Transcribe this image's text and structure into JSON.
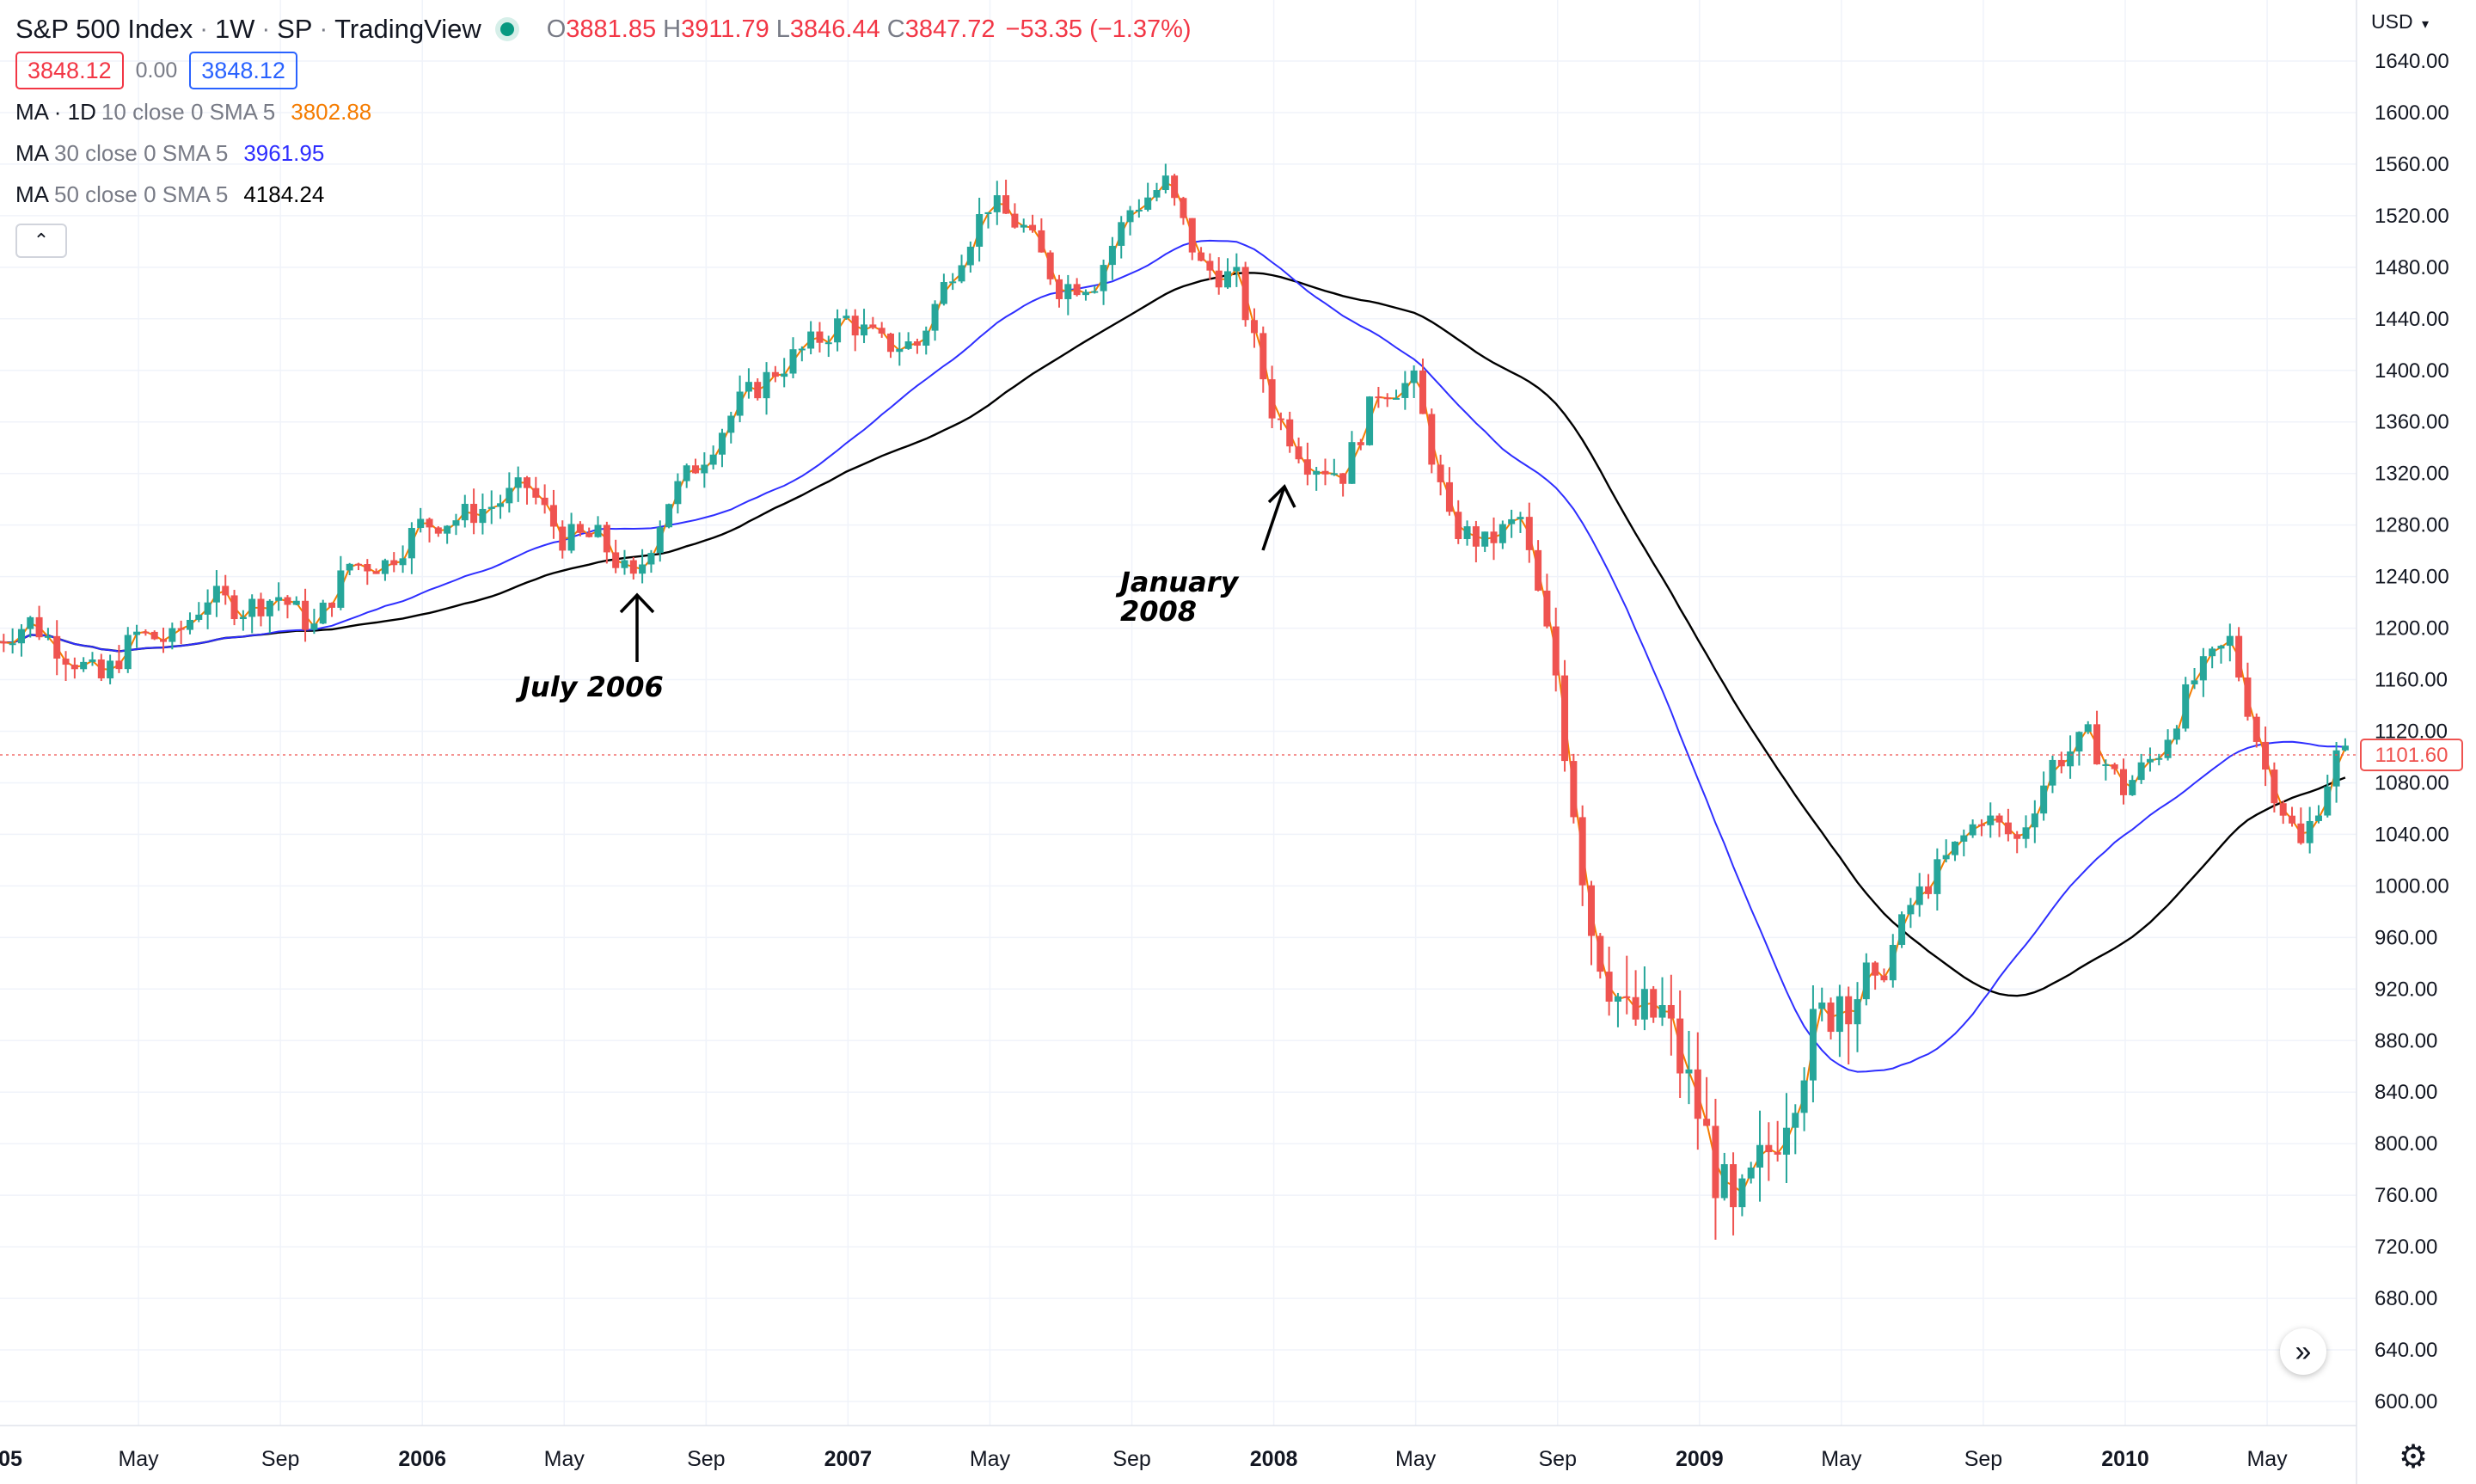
{
  "header": {
    "symbol": "S&P 500 Index",
    "interval": "1W",
    "exchange": "SP",
    "source": "TradingView",
    "ohlc": {
      "o_label": "O",
      "o": "3881.85",
      "h_label": "H",
      "h": "3911.79",
      "l_label": "L",
      "l": "3846.44",
      "c_label": "C",
      "c": "3847.72",
      "change": "−53.35 (−1.37%)"
    },
    "bid": "3848.12",
    "spread": "0.00",
    "ask": "3848.12"
  },
  "indicators": [
    {
      "label": "MA · 1D",
      "params": "10 close 0 SMA 5",
      "value": "3802.88",
      "color": "#f57c00"
    },
    {
      "label": "MA",
      "params": "30 close 0 SMA 5",
      "value": "3961.95",
      "color": "#2e2eff"
    },
    {
      "label": "MA",
      "params": "50 close 0 SMA 5",
      "value": "4184.24",
      "color": "#000000"
    }
  ],
  "price_scale": {
    "currency": "USD",
    "last_price_label": "1101.60",
    "ticks": [
      "1640.00",
      "1600.00",
      "1560.00",
      "1520.00",
      "1480.00",
      "1440.00",
      "1400.00",
      "1360.00",
      "1320.00",
      "1280.00",
      "1240.00",
      "1200.00",
      "1160.00",
      "1120.00",
      "1080.00",
      "1040.00",
      "1000.00",
      "960.00",
      "920.00",
      "880.00",
      "840.00",
      "800.00",
      "760.00",
      "720.00",
      "680.00",
      "640.00",
      "600.00"
    ]
  },
  "time_scale": {
    "labels": [
      {
        "text": "05",
        "bold": true
      },
      {
        "text": "May",
        "bold": false
      },
      {
        "text": "Sep",
        "bold": false
      },
      {
        "text": "2006",
        "bold": true
      },
      {
        "text": "May",
        "bold": false
      },
      {
        "text": "Sep",
        "bold": false
      },
      {
        "text": "2007",
        "bold": true
      },
      {
        "text": "May",
        "bold": false
      },
      {
        "text": "Sep",
        "bold": false
      },
      {
        "text": "2008",
        "bold": true
      },
      {
        "text": "May",
        "bold": false
      },
      {
        "text": "Sep",
        "bold": false
      },
      {
        "text": "2009",
        "bold": true
      },
      {
        "text": "May",
        "bold": false
      },
      {
        "text": "Sep",
        "bold": false
      },
      {
        "text": "2010",
        "bold": true
      },
      {
        "text": "May",
        "bold": false
      }
    ]
  },
  "annotations": [
    {
      "text": "July 2006"
    },
    {
      "text": "January 2008"
    }
  ],
  "colors": {
    "up": "#26a69a",
    "down": "#ef5350",
    "ma10": "#f57c00",
    "ma30": "#2e2eff",
    "ma50": "#000000",
    "grid": "#f0f3fa"
  },
  "chart_data": {
    "type": "candlestick",
    "title": "S&P 500 Index · 1W · SP",
    "ylim": [
      580,
      1660
    ],
    "x_start": "2005-01",
    "x_end": "2010-08",
    "close_series": {
      "dates": [
        "2005-01",
        "2005-02",
        "2005-03",
        "2005-04",
        "2005-05",
        "2005-06",
        "2005-07",
        "2005-08",
        "2005-09",
        "2005-10",
        "2005-11",
        "2005-12",
        "2006-01",
        "2006-02",
        "2006-03",
        "2006-04",
        "2006-05",
        "2006-06",
        "2006-07",
        "2006-08",
        "2006-09",
        "2006-10",
        "2006-11",
        "2006-12",
        "2007-01",
        "2007-02",
        "2007-03",
        "2007-04",
        "2007-05",
        "2007-06",
        "2007-07",
        "2007-08",
        "2007-09",
        "2007-10",
        "2007-11",
        "2007-12",
        "2008-01",
        "2008-02",
        "2008-03",
        "2008-04",
        "2008-05",
        "2008-06",
        "2008-07",
        "2008-08",
        "2008-09",
        "2008-10",
        "2008-11",
        "2008-12",
        "2009-01",
        "2009-02",
        "2009-03",
        "2009-04",
        "2009-05",
        "2009-06",
        "2009-07",
        "2009-08",
        "2009-09",
        "2009-10",
        "2009-11",
        "2009-12",
        "2010-01",
        "2010-02",
        "2010-03",
        "2010-04",
        "2010-05",
        "2010-06",
        "2010-07",
        "2010-08"
      ],
      "values": [
        1190,
        1205,
        1180,
        1160,
        1195,
        1190,
        1225,
        1215,
        1225,
        1200,
        1250,
        1250,
        1280,
        1285,
        1295,
        1310,
        1270,
        1270,
        1235,
        1300,
        1335,
        1375,
        1400,
        1420,
        1440,
        1420,
        1420,
        1480,
        1530,
        1510,
        1465,
        1470,
        1525,
        1545,
        1480,
        1470,
        1370,
        1330,
        1320,
        1385,
        1390,
        1280,
        1265,
        1285,
        1165,
        970,
        895,
        900,
        825,
        735,
        795,
        870,
        920,
        920,
        985,
        1020,
        1055,
        1035,
        1095,
        1115,
        1075,
        1105,
        1160,
        1190,
        1090,
        1030,
        1100,
        1102
      ]
    },
    "moving_averages": [
      {
        "name": "MA 10",
        "color": "#f57c00"
      },
      {
        "name": "MA 30",
        "color": "#2e2eff"
      },
      {
        "name": "MA 50",
        "color": "#000000"
      }
    ],
    "grid": true
  }
}
